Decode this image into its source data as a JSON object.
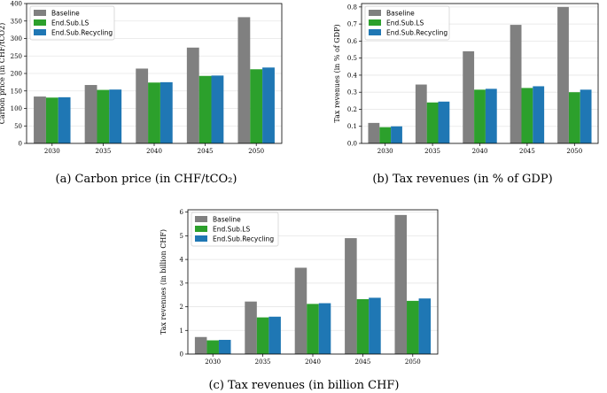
{
  "colors": {
    "Baseline": "#808080",
    "End.Sub.LS": "#2ca02c",
    "End.Sub.Recycling": "#1f77b4"
  },
  "chart_data": [
    {
      "type": "bar",
      "caption": "(a) Carbon price (in CHF/tCO₂)",
      "ylabel": "Carbon price (in CHF/tCO2)",
      "xlabel": "",
      "categories": [
        "2030",
        "2035",
        "2040",
        "2045",
        "2050"
      ],
      "ylim": [
        0,
        400
      ],
      "yticks": [
        "0",
        "50",
        "100",
        "150",
        "200",
        "250",
        "300",
        "350",
        "400"
      ],
      "legend": "top-left",
      "grid": true,
      "series": [
        {
          "name": "Baseline",
          "values": [
            134,
            167,
            214,
            274,
            361
          ]
        },
        {
          "name": "End.Sub.LS",
          "values": [
            131,
            153,
            174,
            193,
            212
          ]
        },
        {
          "name": "End.Sub.Recycling",
          "values": [
            132,
            154,
            175,
            194,
            217
          ]
        }
      ]
    },
    {
      "type": "bar",
      "caption": "(b) Tax revenues (in % of GDP)",
      "ylabel": "Tax revenues (in % of GDP)",
      "xlabel": "",
      "categories": [
        "2030",
        "2035",
        "2040",
        "2045",
        "2050"
      ],
      "ylim": [
        0,
        0.82
      ],
      "yticks": [
        "0.0",
        "0.1",
        "0.2",
        "0.3",
        "0.4",
        "0.5",
        "0.6",
        "0.7",
        "0.8"
      ],
      "legend": "top-left",
      "grid": true,
      "series": [
        {
          "name": "Baseline",
          "values": [
            0.12,
            0.345,
            0.54,
            0.695,
            0.8
          ]
        },
        {
          "name": "End.Sub.LS",
          "values": [
            0.095,
            0.24,
            0.315,
            0.325,
            0.3
          ]
        },
        {
          "name": "End.Sub.Recycling",
          "values": [
            0.1,
            0.245,
            0.32,
            0.335,
            0.315
          ]
        }
      ]
    },
    {
      "type": "bar",
      "caption": "(c) Tax revenues (in billion CHF)",
      "ylabel": "Tax revenues (in billion CHF)",
      "xlabel": "",
      "categories": [
        "2030",
        "2035",
        "2040",
        "2045",
        "2050"
      ],
      "ylim": [
        0,
        6.1
      ],
      "yticks": [
        "0",
        "1",
        "2",
        "3",
        "4",
        "5",
        "6"
      ],
      "legend": "top-left",
      "grid": true,
      "series": [
        {
          "name": "Baseline",
          "values": [
            0.72,
            2.22,
            3.65,
            4.9,
            5.88
          ]
        },
        {
          "name": "End.Sub.LS",
          "values": [
            0.58,
            1.55,
            2.12,
            2.32,
            2.25
          ]
        },
        {
          "name": "End.Sub.Recycling",
          "values": [
            0.6,
            1.58,
            2.15,
            2.38,
            2.35
          ]
        }
      ]
    }
  ]
}
